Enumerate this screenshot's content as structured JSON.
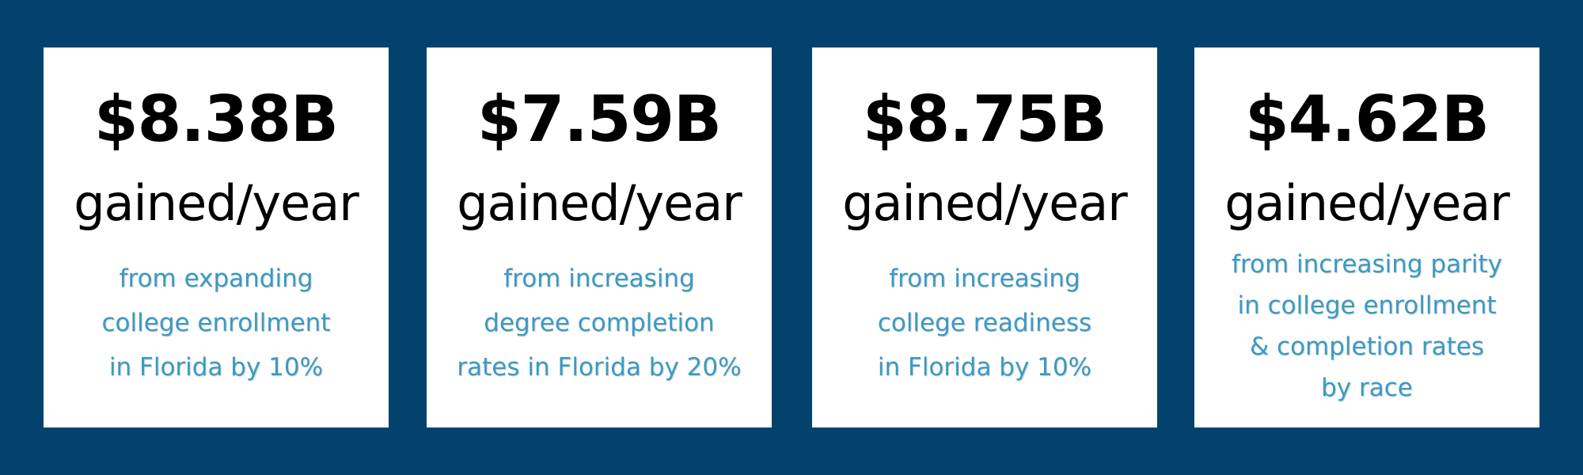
{
  "cards": [
    {
      "amount": "$8.38B",
      "unit": "gained/year",
      "description": [
        "from expanding",
        "college enrollment",
        "in Florida by 10%"
      ]
    },
    {
      "amount": "$7.59B",
      "unit": "gained/year",
      "description": [
        "from increasing",
        "degree completion",
        "rates in Florida by 20%"
      ]
    },
    {
      "amount": "$8.75B",
      "unit": "gained/year",
      "description": [
        "from increasing",
        "college readiness",
        "in Florida by 10%"
      ]
    },
    {
      "amount": "$4.62B",
      "unit": "gained/year",
      "description": [
        "from increasing parity",
        "in college enrollment",
        "& completion rates",
        "by race"
      ]
    }
  ],
  "colors": {
    "background": "#03426d",
    "card": "#ffffff",
    "amount_text": "#000000",
    "description_text": "#3a9ac3"
  }
}
